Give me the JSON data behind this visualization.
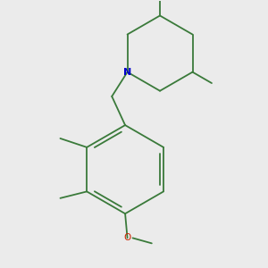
{
  "bg_color": "#ebebeb",
  "bond_color": "#3a7a3a",
  "N_color": "#0000cc",
  "O_color": "#cc2200",
  "fig_width": 3.0,
  "fig_height": 3.0,
  "dpi": 100,
  "lw": 1.3
}
